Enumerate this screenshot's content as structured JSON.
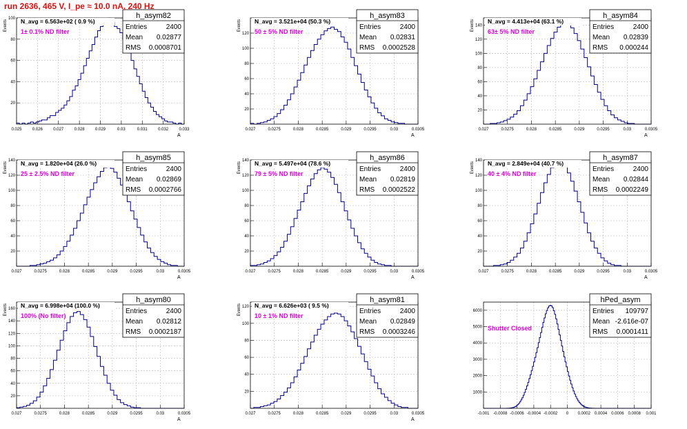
{
  "run_title": "run 2636,   465 V, I_pe ≈ 10.0 nA, 240 Hz",
  "colors": {
    "hist": "#00008b",
    "annotation": "#e000e0",
    "title": "#e01010",
    "grid": "#bdbdbd"
  },
  "stats_labels": {
    "entries": "Entries",
    "mean": "Mean",
    "rms": "RMS"
  },
  "chart_data": [
    {
      "type": "histogram",
      "name": "h_asym82",
      "navg": "N_avg = 6.563e+02 ( 0.9 %)",
      "filter": "1± 0.1% ND filter",
      "entries": "2400",
      "mean": "0.02877",
      "rms": "0.0008701",
      "xlim": [
        0.025,
        0.033
      ],
      "ylim": [
        0,
        100
      ],
      "xlabel": "A",
      "xticks": [
        "0.025",
        "0.026",
        "0.027",
        "0.028",
        "0.029",
        "0.03",
        "0.031",
        "0.032",
        "0.033"
      ],
      "yticks": [
        "20",
        "40",
        "60",
        "80",
        "100"
      ],
      "ylabel": "Events",
      "values": [
        1,
        0,
        1,
        0,
        1,
        2,
        1,
        2,
        3,
        4,
        4,
        6,
        8,
        8,
        11,
        13,
        15,
        18,
        22,
        26,
        32,
        36,
        42,
        48,
        55,
        62,
        69,
        75,
        82,
        88,
        92,
        96,
        98,
        100,
        96,
        92,
        90,
        86,
        80,
        74,
        67,
        60,
        52,
        45,
        38,
        31,
        25,
        20,
        16,
        12,
        9,
        7,
        5,
        3,
        2,
        2,
        1,
        0,
        1,
        0
      ]
    },
    {
      "type": "histogram",
      "name": "h_asym83",
      "navg": "N_avg = 3.521e+04 (50.3 %)",
      "filter": "50 ± 5% ND filter",
      "entries": "2400",
      "mean": "0.02831",
      "rms": "0.0002528",
      "xlim": [
        0.027,
        0.0305
      ],
      "ylim": [
        0,
        140
      ],
      "xlabel": "A",
      "xticks": [
        "0.027",
        "0.0275",
        "0.028",
        "0.0285",
        "0.029",
        "0.0295",
        "0.03",
        "0.0305"
      ],
      "yticks": [
        "20",
        "40",
        "60",
        "80",
        "100",
        "120"
      ],
      "ylabel": "Events",
      "values": [
        1,
        0,
        1,
        2,
        3,
        5,
        7,
        10,
        14,
        19,
        25,
        32,
        40,
        49,
        58,
        68,
        78,
        88,
        97,
        105,
        112,
        118,
        123,
        126,
        128,
        125,
        122,
        115,
        108,
        99,
        88,
        77,
        66,
        55,
        45,
        36,
        28,
        21,
        15,
        11,
        7,
        5,
        3,
        2,
        1,
        1,
        0,
        0,
        0,
        0
      ]
    },
    {
      "type": "histogram",
      "name": "h_asym84",
      "navg": "N_avg = 4.413e+04 (63.1 %)",
      "filter": "63± 5% ND filter",
      "entries": "2400",
      "mean": "0.02839",
      "rms": "0.000244",
      "xlim": [
        0.027,
        0.0305
      ],
      "ylim": [
        0,
        150
      ],
      "xlabel": "A",
      "xticks": [
        "0.027",
        "0.0275",
        "0.028",
        "0.0285",
        "0.029",
        "0.0295",
        "0.03",
        "0.0305"
      ],
      "yticks": [
        "20",
        "40",
        "60",
        "80",
        "100",
        "120",
        "140"
      ],
      "ylabel": "Events",
      "values": [
        0,
        0,
        1,
        1,
        2,
        3,
        5,
        7,
        10,
        14,
        19,
        26,
        34,
        43,
        53,
        64,
        76,
        88,
        100,
        111,
        121,
        130,
        137,
        142,
        145,
        141,
        136,
        128,
        118,
        106,
        94,
        81,
        68,
        56,
        45,
        35,
        26,
        19,
        13,
        9,
        6,
        4,
        2,
        1,
        1,
        0,
        0,
        0,
        0,
        0
      ]
    },
    {
      "type": "histogram",
      "name": "h_asym85",
      "navg": "N_avg = 1.820e+04 (26.0 %)",
      "filter": "25 ± 2.5% ND filter",
      "entries": "2400",
      "mean": "0.02869",
      "rms": "0.0002766",
      "xlim": [
        0.027,
        0.0305
      ],
      "ylim": [
        0,
        140
      ],
      "xlabel": "A",
      "xticks": [
        "0.027",
        "0.0275",
        "0.028",
        "0.0285",
        "0.029",
        "0.0295",
        "0.03",
        "0.0305"
      ],
      "yticks": [
        "20",
        "40",
        "60",
        "80",
        "100",
        "120",
        "140"
      ],
      "ylabel": "Events",
      "values": [
        0,
        0,
        0,
        0,
        1,
        1,
        2,
        3,
        4,
        6,
        8,
        11,
        15,
        20,
        26,
        33,
        41,
        50,
        60,
        70,
        81,
        91,
        101,
        110,
        118,
        125,
        130,
        132,
        129,
        124,
        116,
        107,
        96,
        85,
        73,
        62,
        51,
        41,
        32,
        24,
        18,
        13,
        9,
        6,
        4,
        2,
        1,
        1,
        0,
        0
      ]
    },
    {
      "type": "histogram",
      "name": "h_asym86",
      "navg": "N_avg = 5.497e+04 (78.6 %)",
      "filter": "79 ± 5% ND filter",
      "entries": "2400",
      "mean": "0.02819",
      "rms": "0.0002522",
      "xlim": [
        0.027,
        0.0305
      ],
      "ylim": [
        0,
        140
      ],
      "xlabel": "A",
      "xticks": [
        "0.027",
        "0.0275",
        "0.028",
        "0.0285",
        "0.029",
        "0.0295",
        "0.03",
        "0.0305"
      ],
      "yticks": [
        "20",
        "40",
        "60",
        "80",
        "100",
        "120",
        "140"
      ],
      "ylabel": "Events",
      "values": [
        1,
        1,
        2,
        3,
        5,
        7,
        10,
        14,
        19,
        25,
        33,
        42,
        52,
        63,
        74,
        85,
        96,
        106,
        115,
        122,
        127,
        130,
        128,
        124,
        117,
        108,
        97,
        85,
        73,
        61,
        50,
        40,
        31,
        23,
        17,
        12,
        8,
        5,
        3,
        2,
        1,
        1,
        0,
        0,
        0,
        0,
        0,
        0,
        0,
        0
      ]
    },
    {
      "type": "histogram",
      "name": "h_asym87",
      "navg": "N_avg = 2.849e+04 (40.7 %)",
      "filter": "40 ± 4% ND filter",
      "entries": "2400",
      "mean": "0.02844",
      "rms": "0.0002249",
      "xlim": [
        0.027,
        0.0305
      ],
      "ylim": [
        0,
        140
      ],
      "xlabel": "A",
      "xticks": [
        "0.027",
        "0.0275",
        "0.028",
        "0.0285",
        "0.029",
        "0.0295",
        "0.03",
        "0.0305"
      ],
      "yticks": [
        "20",
        "40",
        "60",
        "80",
        "100",
        "120",
        "140"
      ],
      "ylabel": "Events",
      "values": [
        0,
        0,
        0,
        1,
        1,
        2,
        3,
        5,
        8,
        12,
        17,
        24,
        33,
        44,
        56,
        69,
        83,
        97,
        110,
        121,
        130,
        136,
        139,
        137,
        132,
        123,
        112,
        99,
        85,
        71,
        57,
        44,
        33,
        24,
        17,
        11,
        7,
        4,
        2,
        1,
        1,
        0,
        0,
        0,
        0,
        0,
        0,
        0,
        0,
        0
      ]
    },
    {
      "type": "histogram",
      "name": "h_asym80",
      "navg": "N_avg = 6.998e+04 (100.0 %)",
      "filter": "100% (No filter)",
      "entries": "2400",
      "mean": "0.02812",
      "rms": "0.0002187",
      "xlim": [
        0.027,
        0.0305
      ],
      "ylim": [
        0,
        170
      ],
      "xlabel": "A",
      "xticks": [
        "0.027",
        "0.0275",
        "0.028",
        "0.0285",
        "0.029",
        "0.0295",
        "0.03",
        "0.0305"
      ],
      "yticks": [
        "20",
        "40",
        "60",
        "80",
        "100",
        "120",
        "140",
        "160"
      ],
      "ylabel": "Events",
      "values": [
        1,
        2,
        3,
        5,
        8,
        12,
        18,
        26,
        36,
        48,
        62,
        77,
        93,
        109,
        124,
        137,
        147,
        153,
        155,
        150,
        142,
        130,
        115,
        99,
        83,
        67,
        53,
        40,
        29,
        21,
        14,
        9,
        6,
        4,
        2,
        1,
        1,
        0,
        0,
        0,
        0,
        0,
        0,
        0,
        0,
        0,
        0,
        0,
        0,
        0
      ]
    },
    {
      "type": "histogram",
      "name": "h_asym81",
      "navg": "N_avg = 6.626e+03 ( 9.5 %)",
      "filter": "10 ± 1% ND filter",
      "entries": "2400",
      "mean": "0.02849",
      "rms": "0.0003246",
      "xlim": [
        0.027,
        0.0305
      ],
      "ylim": [
        0,
        125
      ],
      "xlabel": "A",
      "xticks": [
        "0.027",
        "0.0275",
        "0.028",
        "0.0285",
        "0.029",
        "0.0295",
        "0.03",
        "0.0305"
      ],
      "yticks": [
        "20",
        "40",
        "60",
        "80",
        "100",
        "120"
      ],
      "ylabel": "Events",
      "values": [
        0,
        1,
        1,
        2,
        3,
        4,
        6,
        8,
        11,
        15,
        19,
        24,
        30,
        37,
        45,
        53,
        61,
        70,
        78,
        86,
        93,
        99,
        104,
        108,
        111,
        112,
        111,
        108,
        103,
        97,
        90,
        82,
        73,
        64,
        55,
        46,
        38,
        30,
        23,
        17,
        13,
        9,
        6,
        4,
        2,
        1,
        1,
        0,
        0,
        0
      ]
    },
    {
      "type": "histogram",
      "name": "hPed_asym",
      "navg": "",
      "filter": "Shutter Closed",
      "entries": "109797",
      "mean": "-2.616e-07",
      "rms": "0.0001411",
      "xlim": [
        -0.001,
        0.001
      ],
      "ylim": [
        0,
        6500
      ],
      "xlabel": "",
      "xticks": [
        "-0.001",
        "-0.0008",
        "-0.0006",
        "-0.0004",
        "-0.0002",
        "0",
        "0.0002",
        "0.0004",
        "0.0006",
        "0.0008",
        "0.001"
      ],
      "yticks": [
        "1000",
        "2000",
        "3000",
        "4000",
        "5000",
        "6000"
      ],
      "ylabel": "",
      "values": [
        0,
        0,
        0,
        0,
        0,
        0,
        0,
        0,
        0,
        0,
        0,
        0,
        0,
        0,
        0,
        0,
        0,
        0,
        1,
        2,
        4,
        7,
        12,
        20,
        32,
        50,
        75,
        110,
        158,
        220,
        298,
        395,
        510,
        645,
        800,
        975,
        1165,
        1370,
        1590,
        1820,
        2060,
        2310,
        2570,
        2840,
        3120,
        3410,
        3710,
        4020,
        4330,
        4640,
        4950,
        5250,
        5530,
        5780,
        5990,
        6150,
        6260,
        6300,
        6270,
        6160,
        5980,
        5750,
        5470,
        5160,
        4830,
        4490,
        4150,
        3810,
        3480,
        3150,
        2840,
        2540,
        2250,
        1980,
        1720,
        1480,
        1260,
        1060,
        880,
        720,
        580,
        460,
        360,
        275,
        205,
        150,
        108,
        76,
        52,
        35,
        23,
        15,
        9,
        5,
        3,
        2,
        1,
        0,
        0,
        0,
        0,
        0,
        0,
        0,
        0,
        0,
        0,
        0,
        0,
        0,
        0,
        0,
        0,
        0,
        0,
        0,
        0,
        0,
        0,
        0,
        0,
        0,
        0,
        0,
        0,
        0,
        0,
        0,
        0,
        0,
        0,
        0,
        0,
        0,
        0,
        0,
        0,
        0,
        0,
        0,
        0,
        0,
        0,
        0
      ]
    }
  ]
}
